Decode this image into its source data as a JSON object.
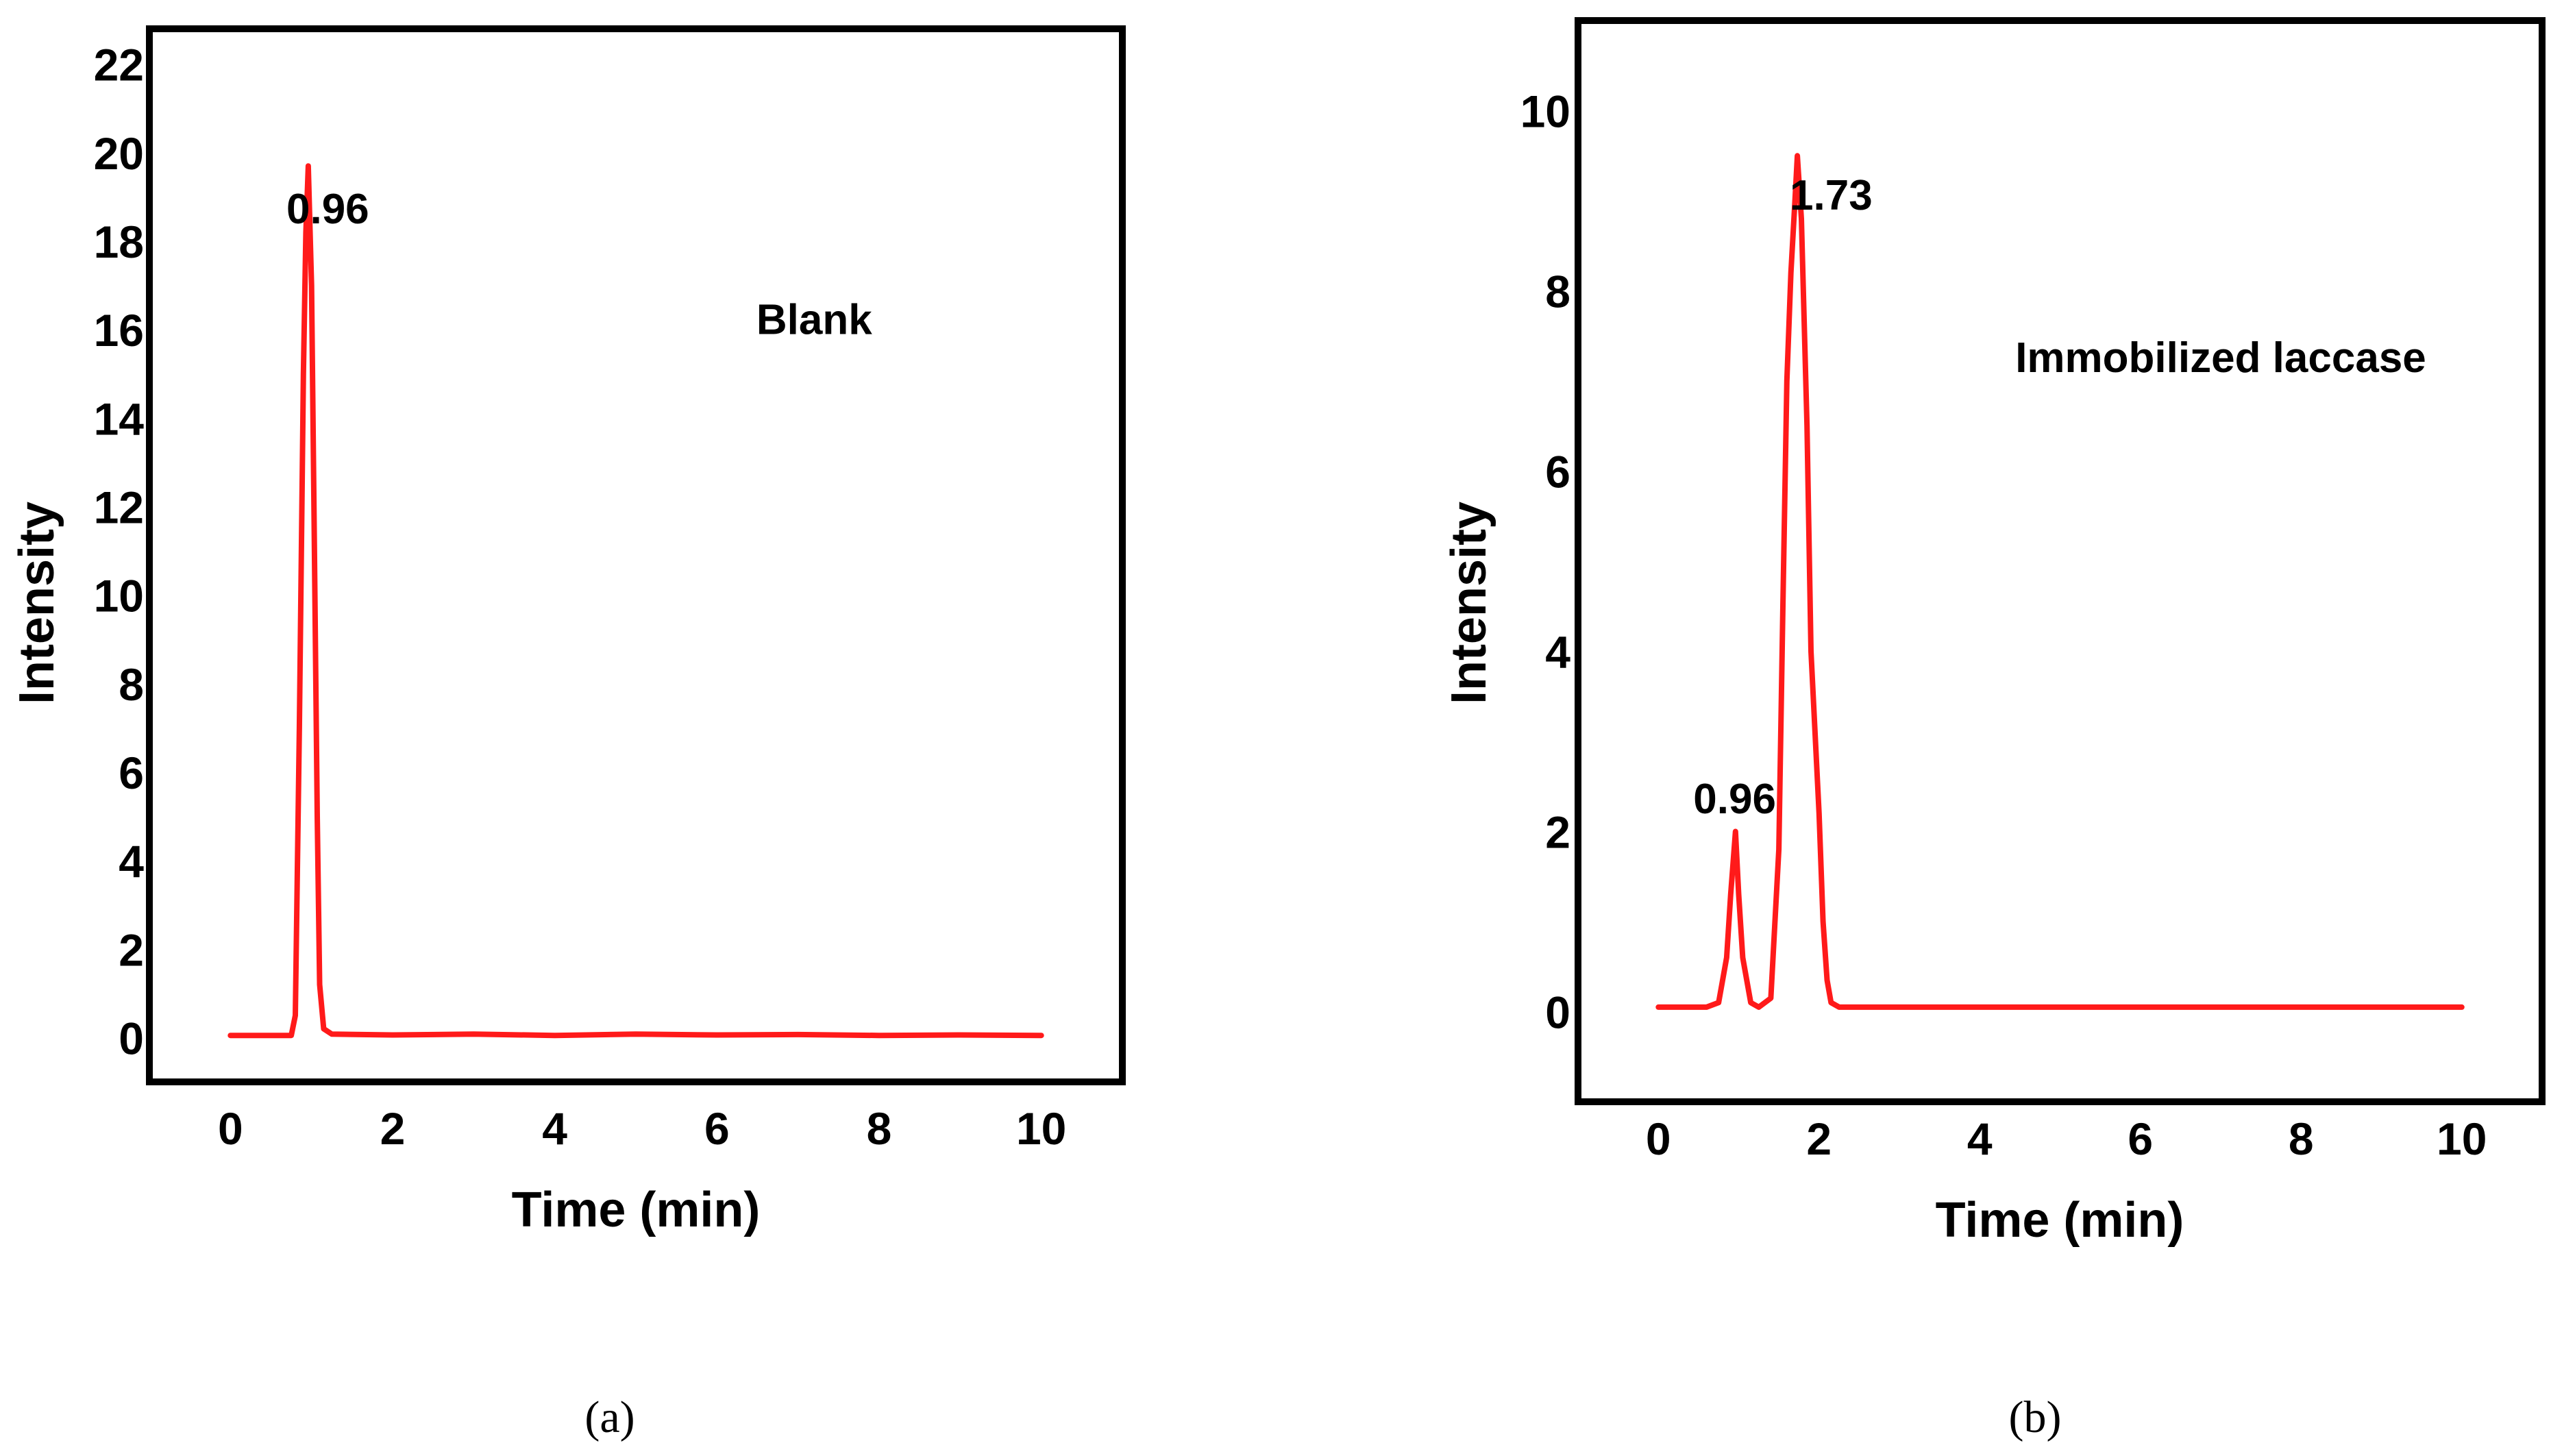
{
  "colors": {
    "trace": "#ff1a1a",
    "frame": "#000000"
  },
  "chart_data": [
    {
      "type": "line",
      "panel_label": "(a)",
      "xlabel": "Time (min)",
      "ylabel": "Intensity",
      "xlim": [
        -1,
        11
      ],
      "ylim": [
        -1,
        22.8
      ],
      "xticks": [
        "0",
        "2",
        "4",
        "6",
        "8",
        "10"
      ],
      "yticks": [
        "0",
        "2",
        "4",
        "6",
        "8",
        "10",
        "12",
        "14",
        "16",
        "18",
        "20",
        "22"
      ],
      "grid": false,
      "annotations": [
        {
          "text": "0.96",
          "x": 1.2,
          "y": 18.4
        },
        {
          "text": "Blank",
          "x": 7.2,
          "y": 15.9
        }
      ],
      "series": [
        {
          "x": [
            0.0,
            0.75,
            0.8,
            0.85,
            0.9,
            0.93,
            0.96,
            1.0,
            1.03,
            1.07,
            1.1,
            1.15,
            1.25,
            2,
            3,
            4,
            5,
            6,
            7,
            8,
            9,
            10
          ],
          "y": [
            0.05,
            0.05,
            0.5,
            7.0,
            15.0,
            18.2,
            19.7,
            17.0,
            12.0,
            5.0,
            1.2,
            0.2,
            0.08,
            0.06,
            0.08,
            0.05,
            0.08,
            0.06,
            0.07,
            0.05,
            0.06,
            0.05
          ]
        }
      ]
    },
    {
      "type": "line",
      "panel_label": "(b)",
      "xlabel": "Time (min)",
      "ylabel": "Intensity",
      "xlim": [
        -1,
        11
      ],
      "ylim": [
        -1,
        11
      ],
      "xticks": [
        "0",
        "2",
        "4",
        "6",
        "8",
        "10"
      ],
      "yticks": [
        "0",
        "2",
        "4",
        "6",
        "8",
        "10"
      ],
      "grid": false,
      "annotations": [
        {
          "text": "0.96",
          "x": 0.95,
          "y": 2.2
        },
        {
          "text": "1.73",
          "x": 2.15,
          "y": 8.9
        },
        {
          "text": "Immobilized laccase",
          "x": 7.0,
          "y": 7.1
        }
      ],
      "series": [
        {
          "x": [
            0.0,
            0.6,
            0.75,
            0.85,
            0.9,
            0.96,
            1.0,
            1.05,
            1.15,
            1.25,
            1.4,
            1.5,
            1.55,
            1.6,
            1.65,
            1.7,
            1.73,
            1.78,
            1.85,
            1.9,
            2.0,
            2.05,
            2.1,
            2.15,
            2.25,
            2.5,
            3,
            5,
            7,
            10
          ],
          "y": [
            0.05,
            0.05,
            0.1,
            0.6,
            1.3,
            2.0,
            1.3,
            0.6,
            0.1,
            0.05,
            0.15,
            1.8,
            4.5,
            7.0,
            8.2,
            9.0,
            9.5,
            8.8,
            6.5,
            4.0,
            2.2,
            1.0,
            0.35,
            0.1,
            0.05,
            0.05,
            0.05,
            0.05,
            0.05,
            0.05
          ]
        }
      ]
    }
  ]
}
